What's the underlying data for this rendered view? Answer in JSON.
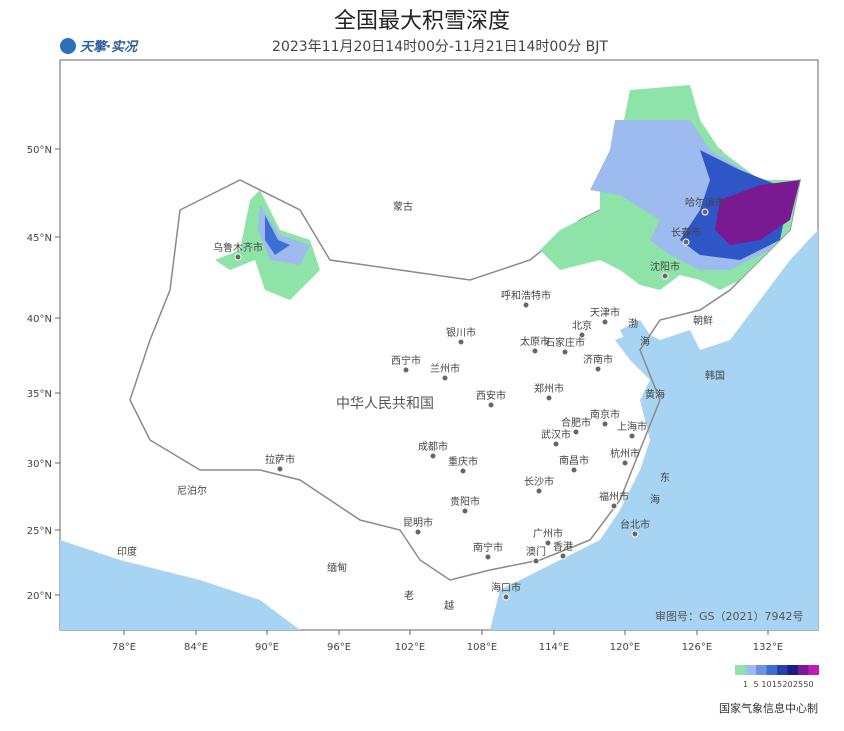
{
  "header": {
    "title": "全国最大积雪深度",
    "subtitle": "2023年11月20日14时00分-11月21日14时00分 BJT",
    "logo": "天擎·实况"
  },
  "map": {
    "lat_labels": [
      "50°N",
      "45°N",
      "40°N",
      "35°N",
      "30°N",
      "25°N",
      "20°N"
    ],
    "lon_labels": [
      "78°E",
      "84°E",
      "90°E",
      "96°E",
      "102°E",
      "108°E",
      "114°E",
      "120°E",
      "126°E",
      "132°E"
    ],
    "places": [
      "乌鲁木齐市",
      "呼和浩特市",
      "北京",
      "天津市",
      "银川市",
      "太原市",
      "石家庄市",
      "济南市",
      "西宁市",
      "兰州市",
      "西安市",
      "郑州市",
      "南京市",
      "合肥市",
      "上海市",
      "武汉市",
      "杭州市",
      "成都市",
      "重庆市",
      "长沙市",
      "南昌市",
      "福州市",
      "台北市",
      "贵阳市",
      "昆明市",
      "南宁市",
      "广州市",
      "香港",
      "澳门",
      "海口市",
      "拉萨市",
      "哈尔滨市",
      "长春市",
      "沈阳市"
    ],
    "regions": [
      "蒙古",
      "中华人民共和国",
      "尼泊尔",
      "印度",
      "缅甸",
      "老",
      "越",
      "朝鲜",
      "韩国"
    ],
    "seas": [
      "渤",
      "海",
      "黄海",
      "东",
      "海"
    ],
    "approval": "审图号：GS（2021）7942号"
  },
  "legend": {
    "labels": [
      "1",
      "5",
      "10",
      "15",
      "20",
      "25",
      "50"
    ]
  },
  "footer": "国家气象信息中心制"
}
